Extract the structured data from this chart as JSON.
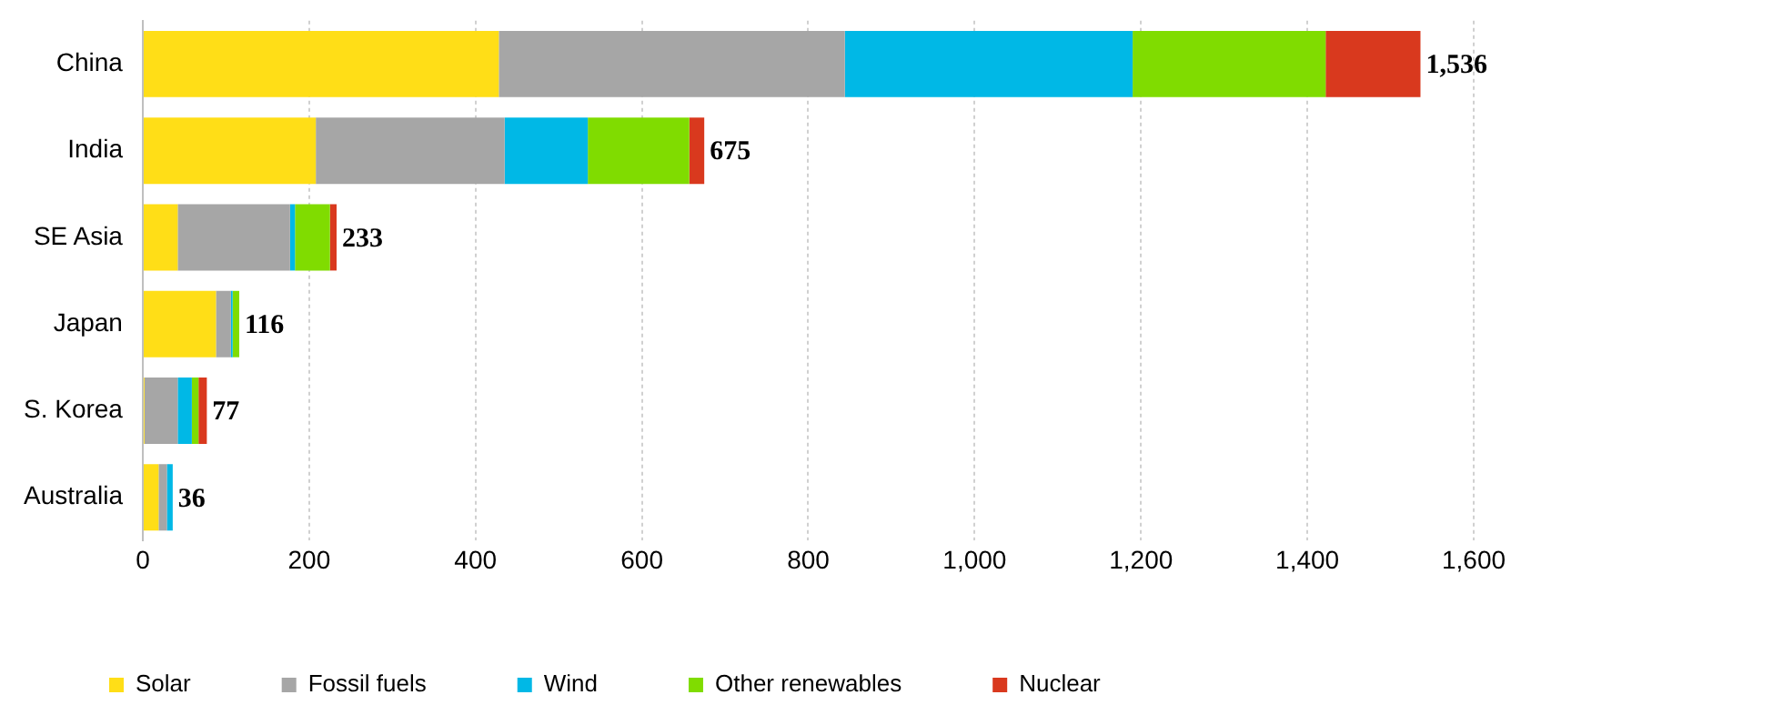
{
  "chart_data": {
    "type": "bar",
    "orientation": "horizontal",
    "stacked": true,
    "categories": [
      "China",
      "India",
      "SE Asia",
      "Japan",
      "S. Korea",
      "Australia"
    ],
    "series": [
      {
        "name": "Solar",
        "color": "#ffde17",
        "values": [
          428,
          208,
          42,
          88,
          2,
          19
        ]
      },
      {
        "name": "Fossil fuels",
        "color": "#a6a6a6",
        "values": [
          416,
          227,
          135,
          18,
          40,
          10
        ]
      },
      {
        "name": "Wind",
        "color": "#00b8e6",
        "values": [
          346,
          100,
          6,
          2,
          17,
          7
        ]
      },
      {
        "name": "Other renewables",
        "color": "#80dc00",
        "values": [
          232,
          122,
          42,
          8,
          8,
          0
        ]
      },
      {
        "name": "Nuclear",
        "color": "#d9391e",
        "values": [
          114,
          18,
          8,
          0,
          10,
          0
        ]
      }
    ],
    "totals": [
      "1,536",
      "675",
      "233",
      "116",
      "77",
      "36"
    ],
    "xlim": [
      0,
      1600
    ],
    "xticks": [
      {
        "value": 0,
        "label": "0"
      },
      {
        "value": 200,
        "label": "200"
      },
      {
        "value": 400,
        "label": "400"
      },
      {
        "value": 600,
        "label": "600"
      },
      {
        "value": 800,
        "label": "800"
      },
      {
        "value": 1000,
        "label": "1,000"
      },
      {
        "value": 1200,
        "label": "1,200"
      },
      {
        "value": 1400,
        "label": "1,400"
      },
      {
        "value": 1600,
        "label": "1,600"
      }
    ],
    "grid": "x",
    "legend": "bottom"
  }
}
